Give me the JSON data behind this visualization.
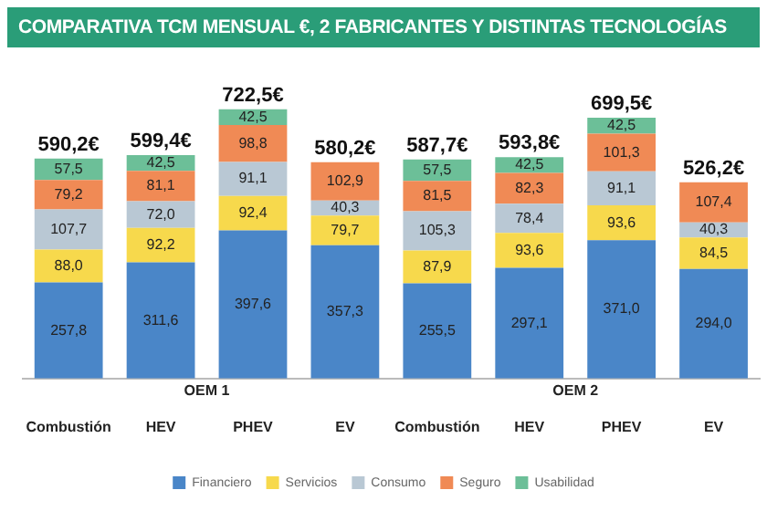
{
  "chart_data": {
    "type": "bar",
    "title": "COMPARATIVA TCM MENSUAL €, 2 FABRICANTES Y DISTINTAS TECNOLOGÍAS",
    "categories": [
      "Combustión",
      "HEV",
      "PHEV",
      "EV",
      "Combustión",
      "HEV",
      "PHEV",
      "EV"
    ],
    "stacked": true,
    "series": [
      {
        "name": "Financiero",
        "color": "#4a86c8",
        "values": [
          257.8,
          311.6,
          397.6,
          357.3,
          255.5,
          297.1,
          371.0,
          294.0
        ],
        "value_labels": [
          "257,8",
          "311,6",
          "397,6",
          "357,3",
          "255,5",
          "297,1",
          "371,0",
          "294,0"
        ]
      },
      {
        "name": "Servicios",
        "color": "#f7d94c",
        "values": [
          88.0,
          92.2,
          92.4,
          79.7,
          87.9,
          93.6,
          93.6,
          84.5
        ],
        "value_labels": [
          "88,0",
          "92,2",
          "92,4",
          "79,7",
          "87,9",
          "93,6",
          "93,6",
          "84,5"
        ]
      },
      {
        "name": "Consumo",
        "color": "#b9c8d4",
        "values": [
          107.7,
          72.0,
          91.1,
          40.3,
          105.3,
          78.4,
          91.1,
          40.3
        ],
        "value_labels": [
          "107,7",
          "72,0",
          "91,1",
          "40,3",
          "105,3",
          "78,4",
          "91,1",
          "40,3"
        ]
      },
      {
        "name": "Seguro",
        "color": "#f08a55",
        "values": [
          79.2,
          81.1,
          98.8,
          102.9,
          81.5,
          82.3,
          101.3,
          107.4
        ],
        "value_labels": [
          "79,2",
          "81,1",
          "98,8",
          "102,9",
          "81,5",
          "82,3",
          "101,3",
          "107,4"
        ]
      },
      {
        "name": "Usabilidad",
        "color": "#6cbf98",
        "values": [
          57.5,
          42.5,
          42.5,
          null,
          57.5,
          42.5,
          42.5,
          null
        ],
        "value_labels": [
          "57,5",
          "42,5",
          "42,5",
          null,
          "57,5",
          "42,5",
          "42,5",
          null
        ]
      }
    ],
    "totals": [
      "590,2€",
      "599,4€",
      "722,5€",
      "580,2€",
      "587,7€",
      "593,8€",
      "699,5€",
      "526,2€"
    ],
    "annotations": [
      "OEM 1",
      "OEM 2"
    ],
    "legend": "bottom"
  }
}
